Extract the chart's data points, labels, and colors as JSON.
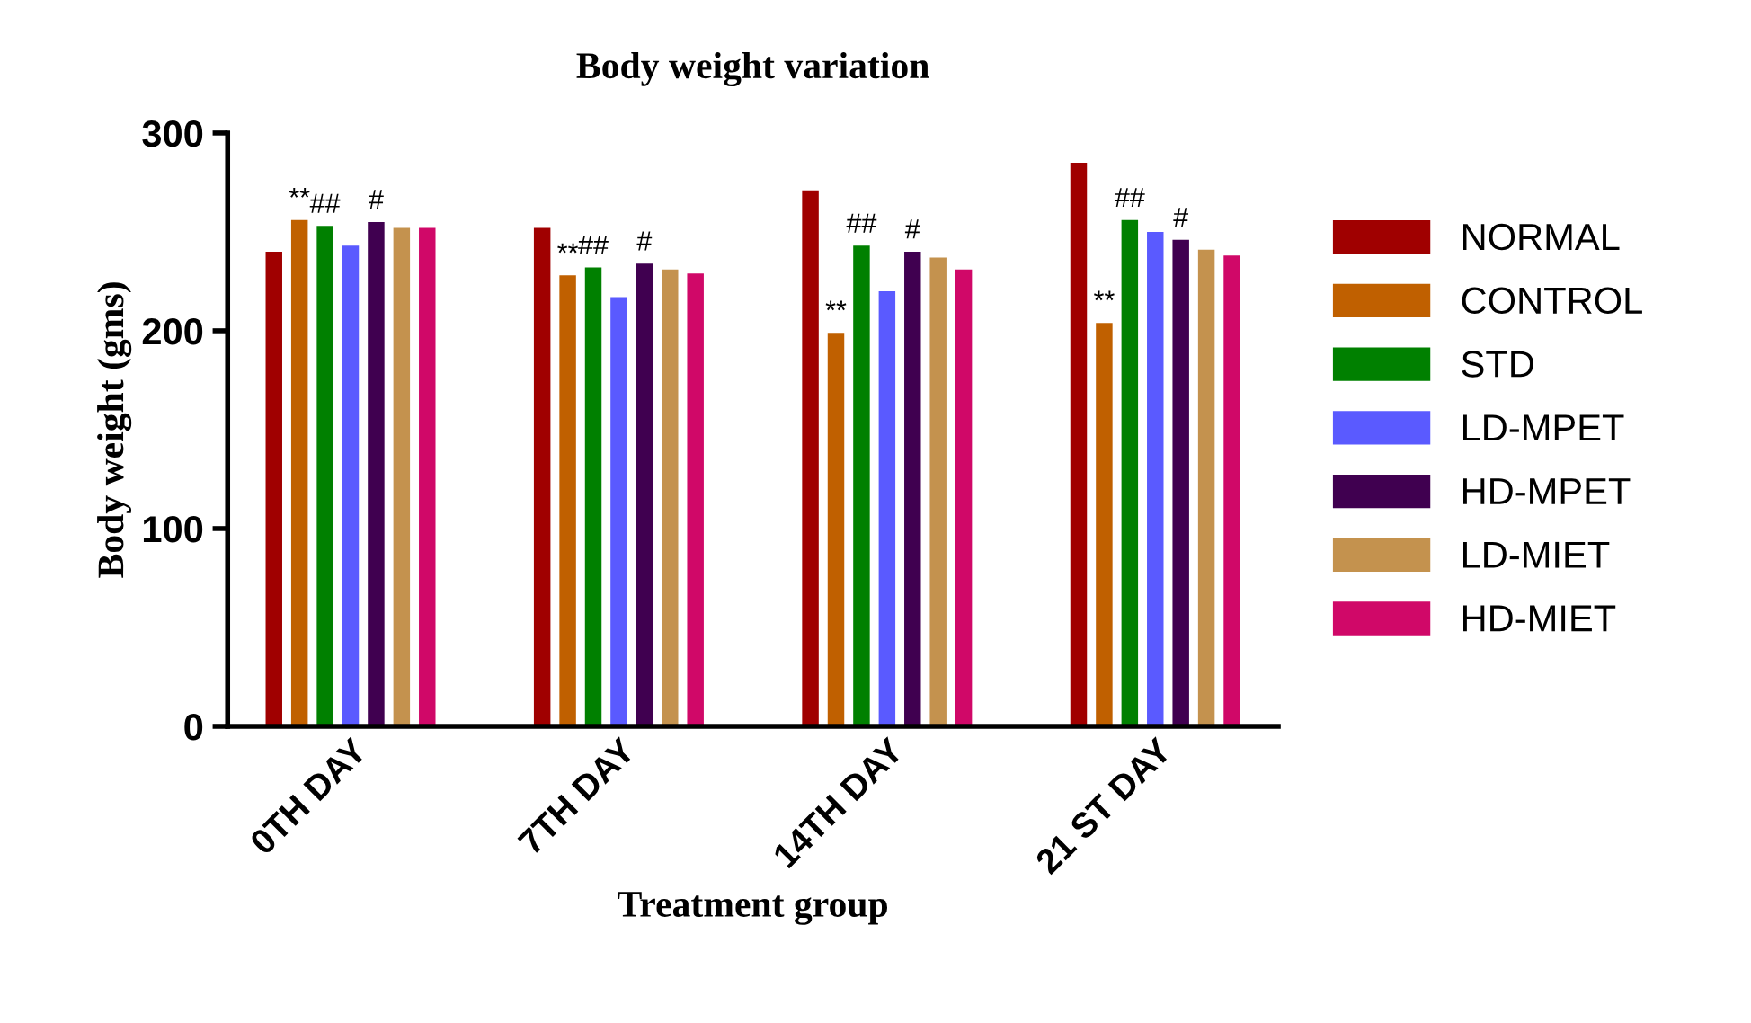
{
  "chart_data": {
    "type": "bar",
    "title": "Body weight variation",
    "xlabel": "Treatment group",
    "ylabel": "Body weight (gms)",
    "categories": [
      "0TH DAY",
      "7TH DAY",
      "14TH DAY",
      "21 ST DAY"
    ],
    "series": [
      {
        "name": "NORMAL",
        "color": "#a00000",
        "values": [
          240,
          252,
          271,
          285
        ]
      },
      {
        "name": "CONTROL",
        "color": "#c06000",
        "values": [
          256,
          228,
          199,
          204
        ]
      },
      {
        "name": "STD",
        "color": "#008000",
        "values": [
          253,
          232,
          243,
          256
        ]
      },
      {
        "name": "LD-MPET",
        "color": "#5a5aff",
        "values": [
          243,
          217,
          220,
          250
        ]
      },
      {
        "name": "HD-MPET",
        "color": "#400050",
        "values": [
          255,
          234,
          240,
          246
        ]
      },
      {
        "name": "LD-MIET",
        "color": "#c4924e",
        "values": [
          252,
          231,
          237,
          241
        ]
      },
      {
        "name": "HD-MIET",
        "color": "#d00868",
        "values": [
          252,
          229,
          231,
          238
        ]
      }
    ],
    "ylim": [
      0,
      300
    ],
    "yticks": [
      0,
      100,
      200,
      300
    ],
    "legend": "right",
    "grid": false,
    "annotations": [
      "**",
      "##",
      "#",
      "**",
      "##",
      "#",
      "**",
      "##",
      "#",
      "**",
      "##",
      "#"
    ]
  }
}
